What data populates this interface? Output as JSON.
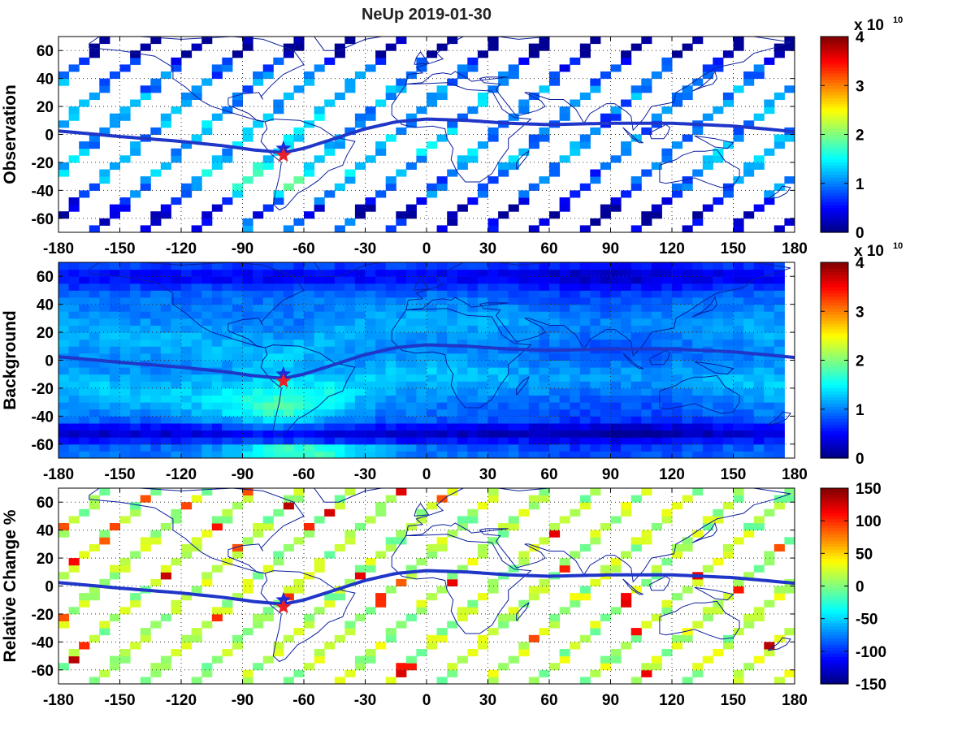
{
  "chart_data": {
    "title": "NeUp  2019-01-30",
    "type": "heatmap",
    "colormap": "jet",
    "xlim": [
      -180,
      180
    ],
    "ylim": [
      -70,
      70
    ],
    "xticks": [
      -180,
      -150,
      -120,
      -90,
      -60,
      -30,
      0,
      30,
      60,
      90,
      120,
      150,
      180
    ],
    "yticks": [
      -60,
      -40,
      -20,
      0,
      20,
      40,
      60
    ],
    "grid": true,
    "map_line_color": "#0a1e9c",
    "marker_star_blue": {
      "lon": -70,
      "lat": -10,
      "color": "#1a2ad8"
    },
    "marker_star_red": {
      "lon": -70,
      "lat": -15,
      "color": "#e8202a"
    },
    "magnetic_equator": [
      [
        -180,
        2.5
      ],
      [
        -150,
        -1.5
      ],
      [
        -120,
        -5
      ],
      [
        -100,
        -8
      ],
      [
        -85,
        -11
      ],
      [
        -70,
        -13
      ],
      [
        -60,
        -10
      ],
      [
        -45,
        -3
      ],
      [
        -30,
        4
      ],
      [
        -15,
        9
      ],
      [
        0,
        11
      ],
      [
        20,
        10
      ],
      [
        40,
        8
      ],
      [
        60,
        7
      ],
      [
        90,
        8
      ],
      [
        120,
        8
      ],
      [
        150,
        6
      ],
      [
        180,
        2
      ]
    ],
    "panels": [
      {
        "ylabel": "Observation",
        "colorbar": {
          "min": 0,
          "max": 4,
          "ticks": [
            0,
            1,
            2,
            3,
            4
          ],
          "exponent_base": "x 10",
          "exponent_power": "10"
        },
        "field": "swaths"
      },
      {
        "ylabel": "Background",
        "colorbar": {
          "min": 0,
          "max": 4,
          "ticks": [
            0,
            1,
            2,
            3,
            4
          ],
          "exponent_base": "x 10",
          "exponent_power": "10"
        },
        "field": "full"
      },
      {
        "ylabel": "Relative Change %",
        "colorbar": {
          "min": -150,
          "max": 150,
          "ticks": [
            -150,
            -100,
            -50,
            0,
            50,
            100,
            150
          ],
          "exponent_base": "",
          "exponent_power": ""
        },
        "field": "swaths_relative"
      }
    ]
  }
}
